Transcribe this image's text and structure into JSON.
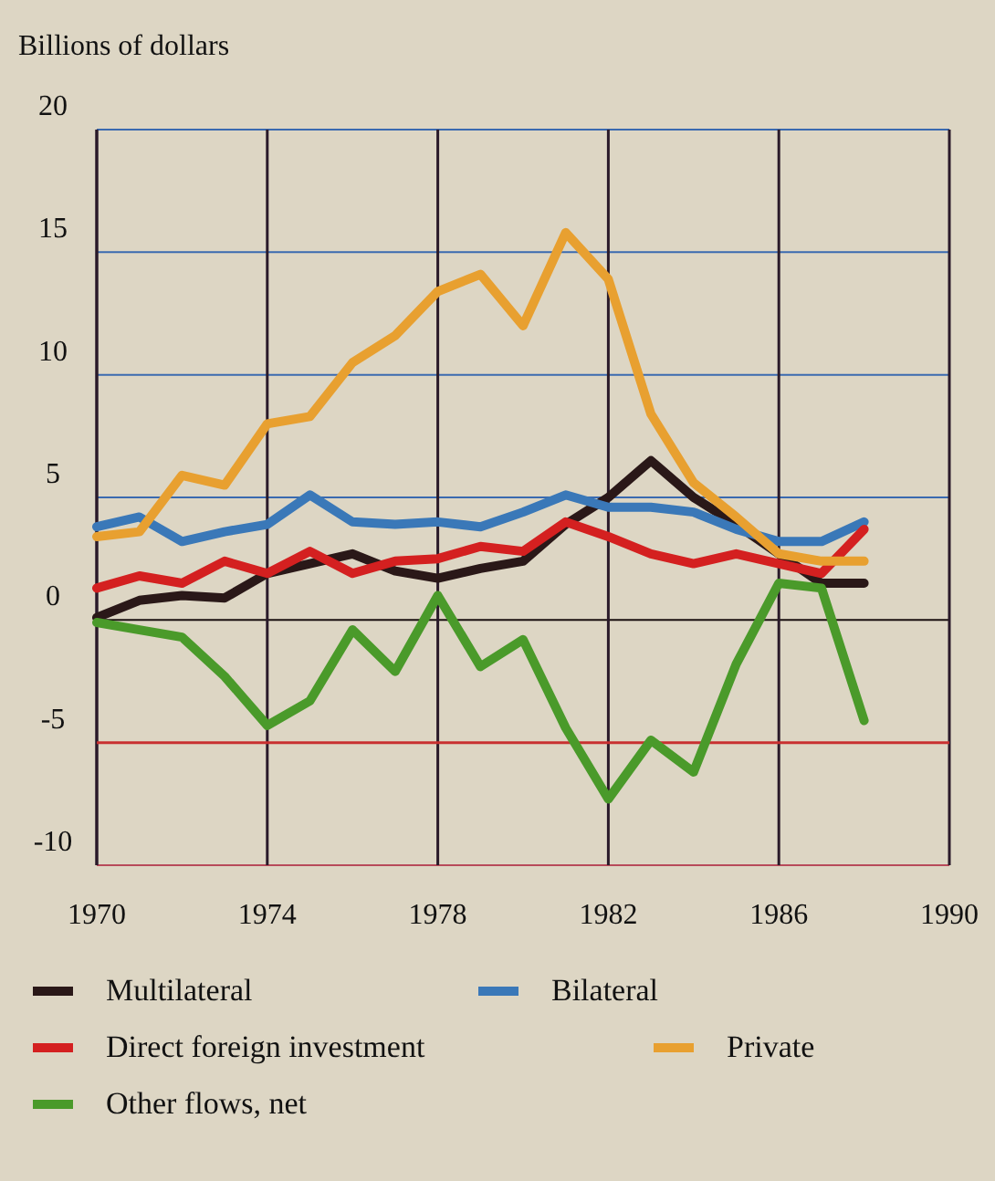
{
  "chart_data": {
    "type": "line",
    "ylabel": "Billions of dollars",
    "x": [
      1970,
      1971,
      1972,
      1973,
      1974,
      1975,
      1976,
      1977,
      1978,
      1979,
      1980,
      1981,
      1982,
      1983,
      1984,
      1985,
      1986,
      1987,
      1988
    ],
    "xlim": [
      1970,
      1990
    ],
    "xticks": [
      1970,
      1974,
      1978,
      1982,
      1986,
      1990
    ],
    "ylim": [
      -10,
      20
    ],
    "yticks": [
      -10,
      -5,
      0,
      5,
      10,
      15,
      20
    ],
    "grid": true,
    "ref_lines": [
      {
        "axis": "y",
        "value": -5,
        "color": "#c83030"
      }
    ],
    "legend": "bottom",
    "marker": "none",
    "line_style": "solid",
    "series": [
      {
        "name": "Multilateral",
        "color": "#2a1818",
        "values": [
          0.1,
          0.8,
          1.0,
          0.9,
          1.9,
          2.3,
          2.7,
          2.0,
          1.7,
          2.1,
          2.4,
          3.9,
          5.0,
          6.5,
          5.0,
          3.9,
          2.7,
          1.5,
          1.5
        ]
      },
      {
        "name": "Bilateral",
        "color": "#3a78b8",
        "values": [
          3.8,
          4.2,
          3.2,
          3.6,
          3.9,
          5.1,
          4.0,
          3.9,
          4.0,
          3.8,
          4.4,
          5.1,
          4.6,
          4.6,
          4.4,
          3.7,
          3.2,
          3.2,
          4.0
        ]
      },
      {
        "name": "Direct foreign investment",
        "color": "#d42020",
        "values": [
          1.3,
          1.8,
          1.5,
          2.4,
          1.9,
          2.8,
          1.9,
          2.4,
          2.5,
          3.0,
          2.8,
          4.0,
          3.4,
          2.7,
          2.3,
          2.7,
          2.3,
          1.9,
          3.7
        ]
      },
      {
        "name": "Private",
        "color": "#e8a030",
        "values": [
          3.4,
          3.6,
          5.9,
          5.5,
          8.0,
          8.3,
          10.5,
          11.6,
          13.4,
          14.1,
          12.0,
          15.8,
          13.9,
          8.4,
          5.6,
          4.2,
          2.7,
          2.4,
          2.4
        ]
      },
      {
        "name": "Other flows, net",
        "color": "#4a9a2a",
        "values": [
          -0.1,
          -0.4,
          -0.7,
          -2.3,
          -4.3,
          -3.3,
          -0.4,
          -2.1,
          1.0,
          -1.9,
          -0.8,
          -4.4,
          -7.3,
          -4.9,
          -6.2,
          -1.8,
          1.5,
          1.3,
          -4.1
        ]
      }
    ]
  }
}
